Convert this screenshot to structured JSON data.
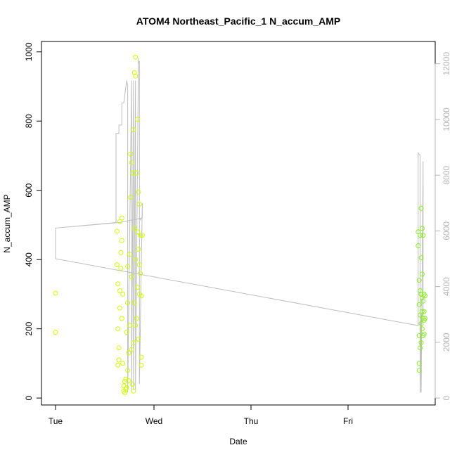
{
  "chart_data": {
    "type": "scatter",
    "title": "ATOM4 Northeast_Pacific_1 N_accum_AMP",
    "xlabel": "Date",
    "ylabel": "N_accum_AMP",
    "x_ticks": [
      "Tue",
      "Wed",
      "Thu",
      "Fri"
    ],
    "y_ticks": [
      0,
      200,
      400,
      600,
      800,
      1000
    ],
    "y2_ticks": [
      0,
      2000,
      4000,
      6000,
      8000,
      10000,
      12000
    ],
    "xlim": [
      0,
      3.96
    ],
    "ylim": [
      -20,
      1030
    ],
    "y2lim": [
      -250,
      12800
    ],
    "grid": false,
    "legend": "none",
    "colors": {
      "points_early": "#ccff00",
      "points_late": "#88ee22",
      "line": "#bebebe",
      "secondary_axis": "#b5b5b5"
    },
    "series": [
      {
        "values": [
          {
            "x": 0.0,
            "y": 303
          },
          {
            "x": 0.0,
            "y": 190
          },
          {
            "x": 0.63,
            "y": 482
          },
          {
            "x": 0.63,
            "y": 385
          },
          {
            "x": 0.64,
            "y": 330
          },
          {
            "x": 0.64,
            "y": 200
          },
          {
            "x": 0.64,
            "y": 95
          },
          {
            "x": 0.65,
            "y": 145
          },
          {
            "x": 0.65,
            "y": 110
          },
          {
            "x": 0.66,
            "y": 510
          },
          {
            "x": 0.66,
            "y": 310
          },
          {
            "x": 0.66,
            "y": 260
          },
          {
            "x": 0.67,
            "y": 420
          },
          {
            "x": 0.67,
            "y": 375
          },
          {
            "x": 0.68,
            "y": 520
          },
          {
            "x": 0.68,
            "y": 455
          },
          {
            "x": 0.68,
            "y": 230
          },
          {
            "x": 0.69,
            "y": 300
          },
          {
            "x": 0.69,
            "y": 100
          },
          {
            "x": 0.7,
            "y": 35
          },
          {
            "x": 0.7,
            "y": 20
          },
          {
            "x": 0.71,
            "y": 15
          },
          {
            "x": 0.71,
            "y": 48
          },
          {
            "x": 0.72,
            "y": 25
          },
          {
            "x": 0.72,
            "y": 55
          },
          {
            "x": 0.73,
            "y": 190
          },
          {
            "x": 0.73,
            "y": 30
          },
          {
            "x": 0.74,
            "y": 380
          },
          {
            "x": 0.74,
            "y": 275
          },
          {
            "x": 0.74,
            "y": 80
          },
          {
            "x": 0.75,
            "y": 50
          },
          {
            "x": 0.75,
            "y": 130
          },
          {
            "x": 0.76,
            "y": 415
          },
          {
            "x": 0.76,
            "y": 210
          },
          {
            "x": 0.77,
            "y": 705
          },
          {
            "x": 0.77,
            "y": 580
          },
          {
            "x": 0.78,
            "y": 680
          },
          {
            "x": 0.78,
            "y": 350
          },
          {
            "x": 0.78,
            "y": 140
          },
          {
            "x": 0.79,
            "y": 650
          },
          {
            "x": 0.79,
            "y": 40
          },
          {
            "x": 0.8,
            "y": 775
          },
          {
            "x": 0.8,
            "y": 160
          },
          {
            "x": 0.8,
            "y": 20
          },
          {
            "x": 0.81,
            "y": 940
          },
          {
            "x": 0.81,
            "y": 490
          },
          {
            "x": 0.81,
            "y": 275
          },
          {
            "x": 0.82,
            "y": 985
          },
          {
            "x": 0.82,
            "y": 930
          },
          {
            "x": 0.82,
            "y": 400
          },
          {
            "x": 0.82,
            "y": 210
          },
          {
            "x": 0.83,
            "y": 650
          },
          {
            "x": 0.83,
            "y": 230
          },
          {
            "x": 0.84,
            "y": 805
          },
          {
            "x": 0.84,
            "y": 480
          },
          {
            "x": 0.84,
            "y": 320
          },
          {
            "x": 0.85,
            "y": 595
          },
          {
            "x": 0.85,
            "y": 430
          },
          {
            "x": 0.85,
            "y": 170
          },
          {
            "x": 0.86,
            "y": 560
          },
          {
            "x": 0.86,
            "y": 385
          },
          {
            "x": 0.86,
            "y": 300
          },
          {
            "x": 0.87,
            "y": 470
          },
          {
            "x": 0.87,
            "y": 360
          },
          {
            "x": 0.88,
            "y": 295
          },
          {
            "x": 0.88,
            "y": 118
          },
          {
            "x": 0.88,
            "y": 95
          },
          {
            "x": 0.89,
            "y": 470
          }
        ]
      },
      {
        "values": [
          {
            "x": 3.72,
            "y": 480
          },
          {
            "x": 3.72,
            "y": 440
          },
          {
            "x": 3.73,
            "y": 340
          },
          {
            "x": 3.73,
            "y": 270
          },
          {
            "x": 3.73,
            "y": 180
          },
          {
            "x": 3.73,
            "y": 100
          },
          {
            "x": 3.73,
            "y": 80
          },
          {
            "x": 3.74,
            "y": 470
          },
          {
            "x": 3.74,
            "y": 310
          },
          {
            "x": 3.74,
            "y": 240
          },
          {
            "x": 3.74,
            "y": 145
          },
          {
            "x": 3.75,
            "y": 548
          },
          {
            "x": 3.75,
            "y": 405
          },
          {
            "x": 3.75,
            "y": 300
          },
          {
            "x": 3.75,
            "y": 215
          },
          {
            "x": 3.75,
            "y": 160
          },
          {
            "x": 3.76,
            "y": 490
          },
          {
            "x": 3.76,
            "y": 358
          },
          {
            "x": 3.76,
            "y": 290
          },
          {
            "x": 3.76,
            "y": 250
          },
          {
            "x": 3.76,
            "y": 200
          },
          {
            "x": 3.77,
            "y": 470
          },
          {
            "x": 3.77,
            "y": 280
          },
          {
            "x": 3.77,
            "y": 230
          },
          {
            "x": 3.77,
            "y": 180
          },
          {
            "x": 3.78,
            "y": 300
          },
          {
            "x": 3.78,
            "y": 250
          },
          {
            "x": 3.78,
            "y": 225
          },
          {
            "x": 3.78,
            "y": 185
          },
          {
            "x": 3.79,
            "y": 295
          },
          {
            "x": 3.79,
            "y": 230
          }
        ]
      }
    ],
    "secondary_line": {
      "x": [
        0.0,
        0.0,
        0.62,
        0.62,
        0.65,
        0.65,
        0.68,
        0.68,
        0.7,
        0.73,
        0.73,
        0.74,
        0.74,
        0.78,
        0.78,
        0.8,
        0.8,
        0.82,
        0.82,
        0.85,
        0.85,
        0.86,
        0.86,
        0.89,
        0.89,
        0.87,
        0.87,
        0.65,
        0.0,
        0.0,
        3.72,
        3.72,
        3.74,
        3.74,
        3.75,
        3.75,
        3.77,
        3.77
      ],
      "y": [
        5000,
        6100,
        6300,
        9500,
        9500,
        9800,
        9800,
        10600,
        10600,
        11400,
        11400,
        11200,
        200,
        11400,
        200,
        11400,
        300,
        11400,
        300,
        12200,
        12000,
        12100,
        500,
        7000,
        6500,
        6400,
        6450,
        6300,
        6100,
        5000,
        2600,
        8800,
        8700,
        200,
        3000,
        200,
        8500,
        2800
      ]
    }
  }
}
